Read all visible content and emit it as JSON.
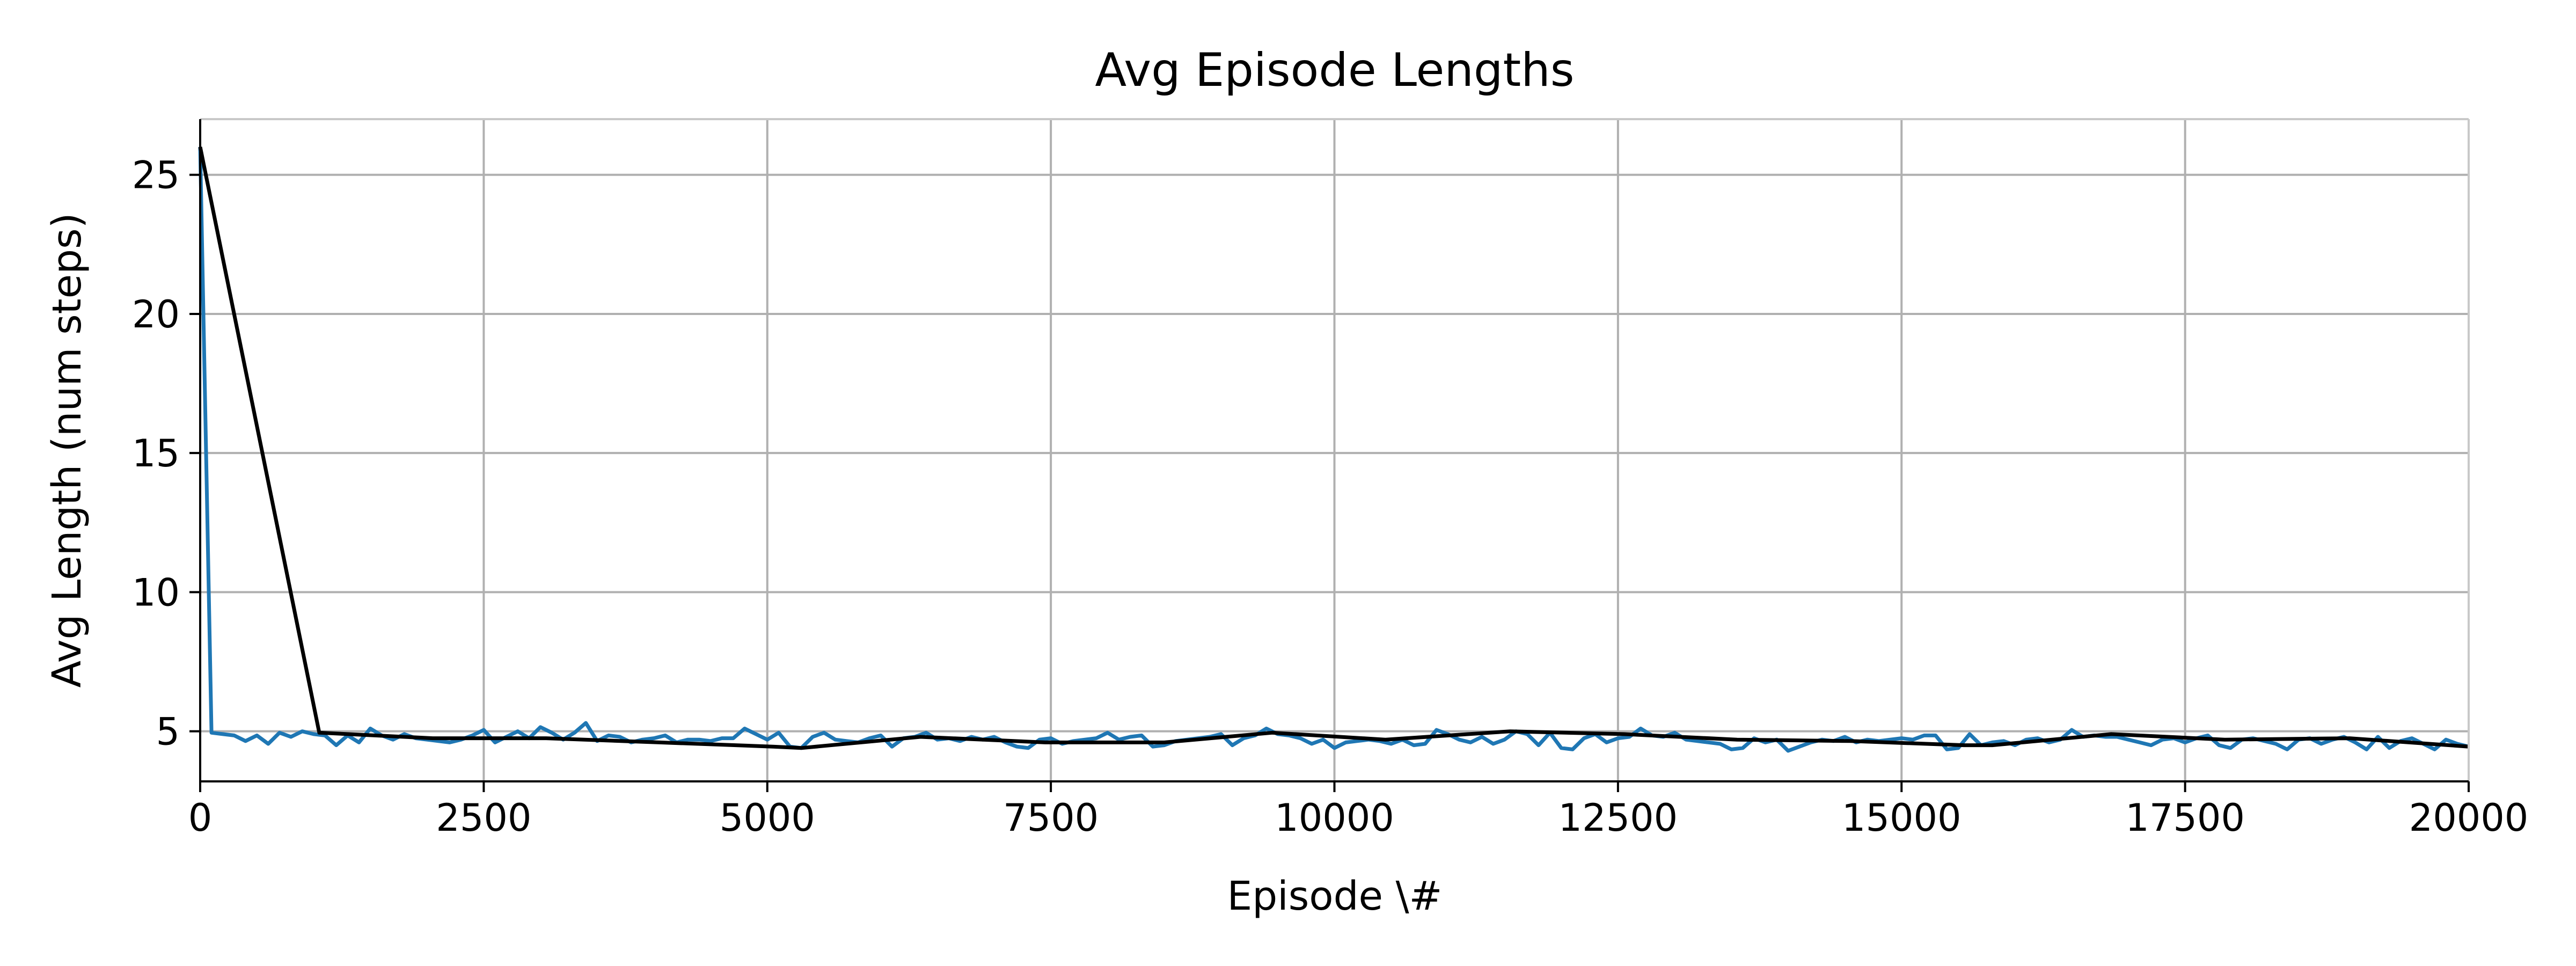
{
  "chart_data": {
    "type": "line",
    "title": "Avg Episode Lengths",
    "xlabel": "Episode \\#",
    "ylabel": "Avg Length (num steps)",
    "xlim": [
      0,
      20000
    ],
    "ylim": [
      3.2,
      27.0
    ],
    "xticks": [
      0,
      2500,
      5000,
      7500,
      10000,
      12500,
      15000,
      17500,
      20000
    ],
    "yticks": [
      5,
      10,
      15,
      20,
      25
    ],
    "grid": true,
    "colors": {
      "raw": "#1f77b4",
      "smoothed": "#000000"
    },
    "series": [
      {
        "x": [
          0,
          100,
          200,
          300,
          400,
          500,
          600,
          700,
          800,
          900,
          1000,
          1100,
          1200,
          1300,
          1400,
          1500,
          1600,
          1700,
          1800,
          1900,
          2000,
          2100,
          2200,
          2300,
          2400,
          2500,
          2600,
          2700,
          2800,
          2900,
          3000,
          3100,
          3200,
          3300,
          3400,
          3500,
          3600,
          3700,
          3800,
          3900,
          4000,
          4100,
          4200,
          4300,
          4400,
          4500,
          4600,
          4700,
          4800,
          4900,
          5000,
          5100,
          5200,
          5300,
          5400,
          5500,
          5600,
          5700,
          5800,
          5900,
          6000,
          6100,
          6200,
          6300,
          6400,
          6500,
          6600,
          6700,
          6800,
          6900,
          7000,
          7100,
          7200,
          7300,
          7400,
          7500,
          7600,
          7700,
          7800,
          7900,
          8000,
          8100,
          8200,
          8300,
          8400,
          8500,
          8600,
          8700,
          8800,
          8900,
          9000,
          9100,
          9200,
          9300,
          9400,
          9500,
          9600,
          9700,
          9800,
          9900,
          10000,
          10100,
          10200,
          10300,
          10400,
          10500,
          10600,
          10700,
          10800,
          10900,
          11000,
          11100,
          11200,
          11300,
          11400,
          11500,
          11600,
          11700,
          11800,
          11900,
          12000,
          12100,
          12200,
          12300,
          12400,
          12500,
          12600,
          12700,
          12800,
          12900,
          13000,
          13100,
          13200,
          13300,
          13400,
          13500,
          13600,
          13700,
          13800,
          13900,
          14000,
          14100,
          14200,
          14300,
          14400,
          14500,
          14600,
          14700,
          14800,
          14900,
          15000,
          15100,
          15200,
          15300,
          15400,
          15500,
          15600,
          15700,
          15800,
          15900,
          16000,
          16100,
          16200,
          16300,
          16400,
          16500,
          16600,
          16700,
          16800,
          16900,
          17000,
          17100,
          17200,
          17300,
          17400,
          17500,
          17600,
          17700,
          17800,
          17900,
          18000,
          18100,
          18200,
          18300,
          18400,
          18500,
          18600,
          18700,
          18800,
          18900,
          19000,
          19100,
          19200,
          19300,
          19400,
          19500,
          19600,
          19700,
          19800,
          19900,
          20000
        ],
        "y": [
          26.0,
          4.95,
          4.9,
          4.85,
          4.65,
          4.85,
          4.55,
          4.95,
          4.8,
          5.0,
          4.9,
          4.85,
          4.5,
          4.85,
          4.6,
          5.1,
          4.85,
          4.7,
          4.9,
          4.75,
          4.7,
          4.65,
          4.6,
          4.7,
          4.85,
          5.05,
          4.6,
          4.8,
          5.0,
          4.75,
          5.15,
          4.95,
          4.7,
          4.95,
          5.3,
          4.65,
          4.85,
          4.8,
          4.6,
          4.7,
          4.75,
          4.85,
          4.6,
          4.7,
          4.7,
          4.65,
          4.75,
          4.75,
          5.1,
          4.9,
          4.7,
          4.95,
          4.45,
          4.4,
          4.8,
          4.95,
          4.7,
          4.65,
          4.6,
          4.75,
          4.85,
          4.45,
          4.75,
          4.8,
          4.95,
          4.7,
          4.75,
          4.65,
          4.8,
          4.7,
          4.8,
          4.6,
          4.45,
          4.4,
          4.7,
          4.75,
          4.55,
          4.65,
          4.7,
          4.75,
          4.95,
          4.7,
          4.8,
          4.85,
          4.45,
          4.5,
          4.65,
          4.7,
          4.75,
          4.8,
          4.9,
          4.5,
          4.75,
          4.85,
          5.1,
          4.9,
          4.85,
          4.75,
          4.55,
          4.7,
          4.4,
          4.6,
          4.65,
          4.7,
          4.65,
          4.55,
          4.7,
          4.5,
          4.55,
          5.05,
          4.9,
          4.7,
          4.6,
          4.8,
          4.55,
          4.7,
          5.0,
          4.9,
          4.5,
          4.95,
          4.4,
          4.35,
          4.75,
          4.9,
          4.6,
          4.75,
          4.8,
          5.1,
          4.85,
          4.8,
          4.95,
          4.7,
          4.65,
          4.6,
          4.55,
          4.35,
          4.4,
          4.75,
          4.6,
          4.7,
          4.3,
          4.45,
          4.6,
          4.7,
          4.65,
          4.8,
          4.6,
          4.7,
          4.65,
          4.7,
          4.75,
          4.7,
          4.85,
          4.85,
          4.35,
          4.4,
          4.9,
          4.5,
          4.6,
          4.65,
          4.5,
          4.7,
          4.75,
          4.6,
          4.7,
          5.05,
          4.8,
          4.85,
          4.8,
          4.8,
          4.7,
          4.6,
          4.5,
          4.7,
          4.75,
          4.6,
          4.75,
          4.85,
          4.5,
          4.4,
          4.7,
          4.75,
          4.65,
          4.55,
          4.35,
          4.7,
          4.75,
          4.55,
          4.7,
          4.8,
          4.6,
          4.35,
          4.8,
          4.4,
          4.65,
          4.75,
          4.55,
          4.35,
          4.7,
          4.55,
          4.45
        ]
      },
      {
        "x": [
          0,
          1050,
          2050,
          3050,
          4050,
          5050,
          5300,
          6350,
          7450,
          8500,
          9450,
          10450,
          11550,
          12550,
          13550,
          14550,
          15550,
          15800,
          16850,
          17850,
          18950,
          20000
        ],
        "y": [
          26.0,
          4.95,
          4.75,
          4.75,
          4.6,
          4.45,
          4.4,
          4.8,
          4.6,
          4.6,
          4.95,
          4.7,
          5.0,
          4.9,
          4.7,
          4.65,
          4.5,
          4.5,
          4.9,
          4.7,
          4.75,
          4.45
        ]
      }
    ]
  }
}
